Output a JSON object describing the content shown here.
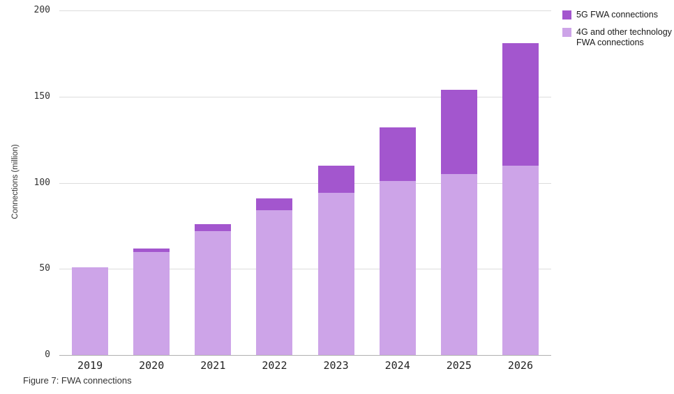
{
  "caption": "Figure 7: FWA connections",
  "legend": {
    "items": [
      {
        "label": "5G FWA connections",
        "color": "#a356ce"
      },
      {
        "label": "4G and other technology FWA connections",
        "color": "#cda4e8"
      }
    ]
  },
  "chart_data": {
    "type": "bar",
    "stacked": true,
    "title": "",
    "xlabel": "",
    "ylabel": "Connections (million)",
    "ylim": [
      0,
      200
    ],
    "yticks": [
      0,
      50,
      100,
      150,
      200
    ],
    "grid": true,
    "legend_position": "top-right",
    "categories": [
      "2019",
      "2020",
      "2021",
      "2022",
      "2023",
      "2024",
      "2025",
      "2026"
    ],
    "series": [
      {
        "name": "4G and other technology FWA connections",
        "color": "#cda4e8",
        "values": [
          51,
          60,
          72,
          84,
          94,
          101,
          105,
          110
        ]
      },
      {
        "name": "5G FWA connections",
        "color": "#a356ce",
        "values": [
          0,
          2,
          4,
          7,
          16,
          31,
          49,
          71
        ]
      }
    ],
    "totals": [
      51,
      62,
      76,
      91,
      110,
      132,
      154,
      181
    ]
  }
}
